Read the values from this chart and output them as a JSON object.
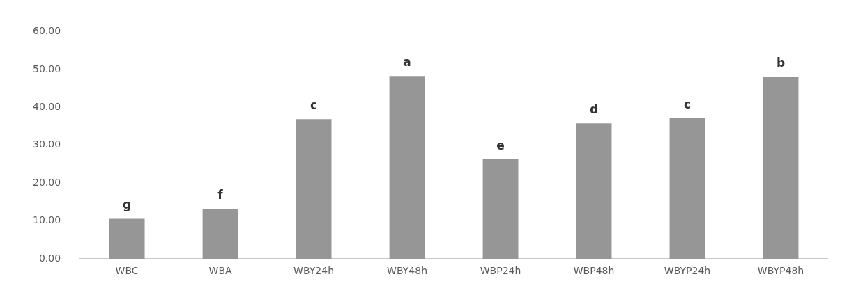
{
  "chart_data": {
    "type": "bar",
    "categories": [
      "WBC",
      "WBA",
      "WBY24h",
      "WBY48h",
      "WBP24h",
      "WBP48h",
      "WBYP24h",
      "WBYP48h"
    ],
    "values": [
      10.6,
      13.2,
      36.9,
      48.3,
      26.3,
      35.8,
      37.2,
      48.1
    ],
    "color": "#969696",
    "ylim": [
      0,
      60
    ],
    "yticks": [
      {
        "value": 0,
        "label": "0.00"
      },
      {
        "value": 10,
        "label": "10.00"
      },
      {
        "value": 20,
        "label": "20.00"
      },
      {
        "value": 30,
        "label": "30.00"
      },
      {
        "value": 40,
        "label": "40.00"
      },
      {
        "value": 50,
        "label": "50.00"
      },
      {
        "value": 60,
        "label": "60.00"
      }
    ],
    "grid": false,
    "legend": false,
    "annotations": [
      {
        "text": "g",
        "x": "WBC",
        "y": 10.6
      },
      {
        "text": "f",
        "x": "WBA",
        "y": 13.2
      },
      {
        "text": "c",
        "x": "WBY24h",
        "y": 36.9
      },
      {
        "text": "a",
        "x": "WBY48h",
        "y": 48.3
      },
      {
        "text": "e",
        "x": "WBP24h",
        "y": 26.3
      },
      {
        "text": "d",
        "x": "WBP48h",
        "y": 35.8
      },
      {
        "text": "c",
        "x": "WBYP24h",
        "y": 37.2
      },
      {
        "text": "b",
        "x": "WBYP48h",
        "y": 48.1
      }
    ]
  }
}
